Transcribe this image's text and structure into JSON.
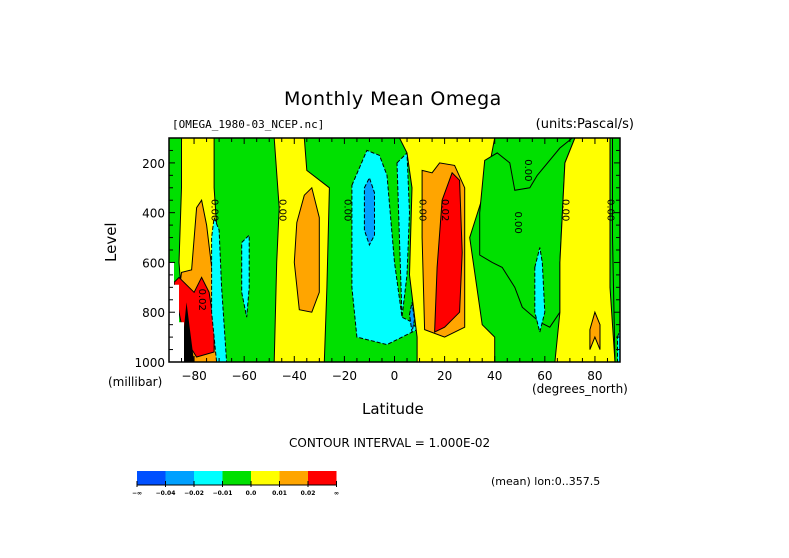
{
  "chart_data": {
    "type": "heatmap",
    "title": "Monthly Mean Omega",
    "file_label": "[OMEGA_1980-03_NCEP.nc]",
    "units_label": "(units:Pascal/s)",
    "xlabel": "Latitude",
    "x_units": "(degrees_north)",
    "ylabel": "Level",
    "y_units": "(millibar)",
    "xlim": [
      -90,
      90
    ],
    "ylim": [
      1000,
      100
    ],
    "x_ticks": [
      -80,
      -60,
      -40,
      -20,
      0,
      20,
      40,
      60,
      80
    ],
    "y_ticks": [
      200,
      400,
      600,
      800,
      1000
    ],
    "contour_interval_text": "CONTOUR INTERVAL = 1.000E-02",
    "footer_text": "(mean) lon:0..357.5",
    "legend": {
      "placement": "bottom-left",
      "levels": [
        "-∞",
        "-0.04",
        "-0.02",
        "-0.01",
        "0.0",
        "0.01",
        "0.02",
        "∞"
      ],
      "colors": [
        "#0050ff",
        "#00a0ff",
        "#00ffff",
        "#00e000",
        "#ffff00",
        "#ffa500",
        "#ff0000"
      ]
    },
    "background_color": "#00e000",
    "missing_color": "#ffffff",
    "regions": [
      {
        "name": "yellow-band-sh-polar",
        "color": "#ffff00",
        "points": [
          [
            -85,
            100
          ],
          [
            -72,
            100
          ],
          [
            -72,
            300
          ],
          [
            -70,
            600
          ],
          [
            -68,
            1000
          ],
          [
            -83,
            1000
          ],
          [
            -86,
            600
          ],
          [
            -85,
            300
          ]
        ]
      },
      {
        "name": "orange-sh-polar",
        "color": "#ffa500",
        "points": [
          [
            -81,
            630
          ],
          [
            -79,
            380
          ],
          [
            -77,
            350
          ],
          [
            -75,
            450
          ],
          [
            -72,
            700
          ],
          [
            -69,
            1000
          ],
          [
            -83,
            1000
          ],
          [
            -86,
            720
          ],
          [
            -85,
            640
          ]
        ]
      },
      {
        "name": "red-sh-polar",
        "color": "#ff0000",
        "points": [
          [
            -88,
            680
          ],
          [
            -86,
            660
          ],
          [
            -80,
            720
          ],
          [
            -77,
            660
          ],
          [
            -74,
            720
          ],
          [
            -72,
            850
          ],
          [
            -72,
            960
          ],
          [
            -79,
            980
          ],
          [
            -84,
            900
          ],
          [
            -86,
            800
          ]
        ]
      },
      {
        "name": "cyan-sh-60",
        "color": "#00ffff",
        "points": [
          [
            -72,
            420
          ],
          [
            -70,
            470
          ],
          [
            -69,
            700
          ],
          [
            -67,
            1000
          ],
          [
            -71,
            1000
          ],
          [
            -73,
            800
          ],
          [
            -73,
            500
          ]
        ]
      },
      {
        "name": "cyan-sh-55",
        "color": "#00ffff",
        "points": [
          [
            -61,
            520
          ],
          [
            -58,
            490
          ],
          [
            -58,
            700
          ],
          [
            -59,
            820
          ],
          [
            -61,
            720
          ]
        ]
      },
      {
        "name": "yellow-sh-35",
        "color": "#ffff00",
        "points": [
          [
            -48,
            100
          ],
          [
            -36,
            100
          ],
          [
            -35,
            230
          ],
          [
            -26,
            300
          ],
          [
            -27,
            700
          ],
          [
            -28,
            1000
          ],
          [
            -48,
            1000
          ],
          [
            -47,
            600
          ],
          [
            -46,
            380
          ]
        ]
      },
      {
        "name": "orange-sh-35",
        "color": "#ffa500",
        "points": [
          [
            -39,
            440
          ],
          [
            -36,
            330
          ],
          [
            -33,
            300
          ],
          [
            -30,
            420
          ],
          [
            -30,
            720
          ],
          [
            -33,
            800
          ],
          [
            -38,
            790
          ],
          [
            -40,
            600
          ]
        ]
      },
      {
        "name": "cyan-sh-10",
        "color": "#00ffff",
        "points": [
          [
            -17,
            290
          ],
          [
            -11,
            150
          ],
          [
            -6,
            170
          ],
          [
            -3,
            250
          ],
          [
            0,
            600
          ],
          [
            3,
            820
          ],
          [
            7,
            840
          ],
          [
            9,
            870
          ],
          [
            -3,
            930
          ],
          [
            -15,
            900
          ],
          [
            -17,
            700
          ]
        ]
      },
      {
        "name": "cyan-sh-3",
        "color": "#00ffff",
        "points": [
          [
            1,
            200
          ],
          [
            5,
            160
          ],
          [
            6,
            400
          ],
          [
            5,
            650
          ],
          [
            3,
            820
          ]
        ]
      },
      {
        "name": "blue-sh-10",
        "color": "#00a0ff",
        "points": [
          [
            -12,
            300
          ],
          [
            -10,
            260
          ],
          [
            -8,
            320
          ],
          [
            -8,
            490
          ],
          [
            -10,
            530
          ],
          [
            -12,
            470
          ]
        ]
      },
      {
        "name": "blue-nh-5",
        "color": "#00a0ff",
        "points": [
          [
            6,
            810
          ],
          [
            7,
            760
          ],
          [
            8,
            830
          ],
          [
            7,
            880
          ]
        ]
      },
      {
        "name": "yellow-nh-20",
        "color": "#ffff00",
        "points": [
          [
            2,
            100
          ],
          [
            40,
            100
          ],
          [
            36,
            310
          ],
          [
            30,
            500
          ],
          [
            35,
            850
          ],
          [
            40,
            900
          ],
          [
            40,
            1000
          ],
          [
            9,
            1000
          ],
          [
            9,
            900
          ],
          [
            6,
            650
          ],
          [
            7,
            300
          ],
          [
            5,
            160
          ]
        ]
      },
      {
        "name": "orange-nh-20",
        "color": "#ffa500",
        "points": [
          [
            11,
            230
          ],
          [
            15,
            240
          ],
          [
            18,
            200
          ],
          [
            24,
            210
          ],
          [
            28,
            300
          ],
          [
            28,
            860
          ],
          [
            20,
            900
          ],
          [
            12,
            870
          ],
          [
            11,
            500
          ]
        ]
      },
      {
        "name": "red-nh-20",
        "color": "#ff0000",
        "points": [
          [
            17,
            620
          ],
          [
            19,
            350
          ],
          [
            23,
            240
          ],
          [
            26,
            270
          ],
          [
            27,
            560
          ],
          [
            26,
            800
          ],
          [
            20,
            860
          ],
          [
            16,
            880
          ]
        ]
      },
      {
        "name": "green-nh-45",
        "color": "#00e000",
        "points": [
          [
            36,
            190
          ],
          [
            41,
            160
          ],
          [
            46,
            200
          ],
          [
            48,
            310
          ],
          [
            54,
            300
          ],
          [
            57,
            250
          ],
          [
            66,
            140
          ],
          [
            71,
            100
          ],
          [
            72,
            100
          ],
          [
            68,
            200
          ],
          [
            67,
            400
          ],
          [
            66,
            600
          ],
          [
            66,
            800
          ],
          [
            62,
            860
          ],
          [
            58,
            840
          ],
          [
            51,
            780
          ],
          [
            48,
            700
          ],
          [
            43,
            620
          ],
          [
            39,
            600
          ],
          [
            34,
            570
          ],
          [
            34,
            400
          ]
        ]
      },
      {
        "name": "yellow-nh-75",
        "color": "#ffff00",
        "points": [
          [
            72,
            100
          ],
          [
            86,
            100
          ],
          [
            86,
            300
          ],
          [
            86,
            700
          ],
          [
            88,
            1000
          ],
          [
            64,
            1000
          ],
          [
            66,
            800
          ],
          [
            66,
            600
          ],
          [
            67,
            400
          ],
          [
            68,
            200
          ]
        ]
      },
      {
        "name": "cyan-nh-55",
        "color": "#00ffff",
        "points": [
          [
            56,
            620
          ],
          [
            58,
            540
          ],
          [
            59,
            600
          ],
          [
            60,
            800
          ],
          [
            58,
            880
          ],
          [
            56,
            800
          ]
        ]
      },
      {
        "name": "orange-nh-80",
        "color": "#ffa500",
        "points": [
          [
            78,
            870
          ],
          [
            80,
            800
          ],
          [
            82,
            850
          ],
          [
            82,
            950
          ],
          [
            80,
            900
          ],
          [
            78,
            950
          ]
        ]
      },
      {
        "name": "green-nh-88",
        "color": "#00e000",
        "points": [
          [
            87,
            100
          ],
          [
            90,
            100
          ],
          [
            90,
            1000
          ],
          [
            88,
            1000
          ],
          [
            87,
            500
          ]
        ]
      },
      {
        "name": "cyan-nh-89",
        "color": "#00ffff",
        "points": [
          [
            89,
            900
          ],
          [
            90,
            870
          ],
          [
            90,
            1000
          ],
          [
            89,
            1000
          ]
        ]
      }
    ],
    "missing_steps": [
      [
        -90,
        600
      ],
      [
        -88,
        600
      ],
      [
        -88,
        690
      ],
      [
        -86,
        690
      ],
      [
        -86,
        840
      ],
      [
        -84,
        840
      ],
      [
        -84,
        1000
      ]
    ],
    "black_region": [
      [
        -84,
        860
      ],
      [
        -83,
        760
      ],
      [
        -82,
        840
      ],
      [
        -80,
        1000
      ],
      [
        -84,
        1000
      ]
    ],
    "contour_labels": [
      {
        "text": "0.00",
        "lat": -73,
        "level": 390
      },
      {
        "text": "0.02",
        "lat": -78,
        "level": 750
      },
      {
        "text": "0.00",
        "lat": -46,
        "level": 390
      },
      {
        "text": "0.00",
        "lat": -20,
        "level": 390
      },
      {
        "text": "0.00",
        "lat": 10,
        "level": 390
      },
      {
        "text": "0.02",
        "lat": 19,
        "level": 390
      },
      {
        "text": "0.00",
        "lat": 48,
        "level": 440
      },
      {
        "text": "0.00",
        "lat": 52,
        "level": 230
      },
      {
        "text": "0.00",
        "lat": 67,
        "level": 390
      },
      {
        "text": "0.00",
        "lat": 85,
        "level": 390
      }
    ]
  }
}
